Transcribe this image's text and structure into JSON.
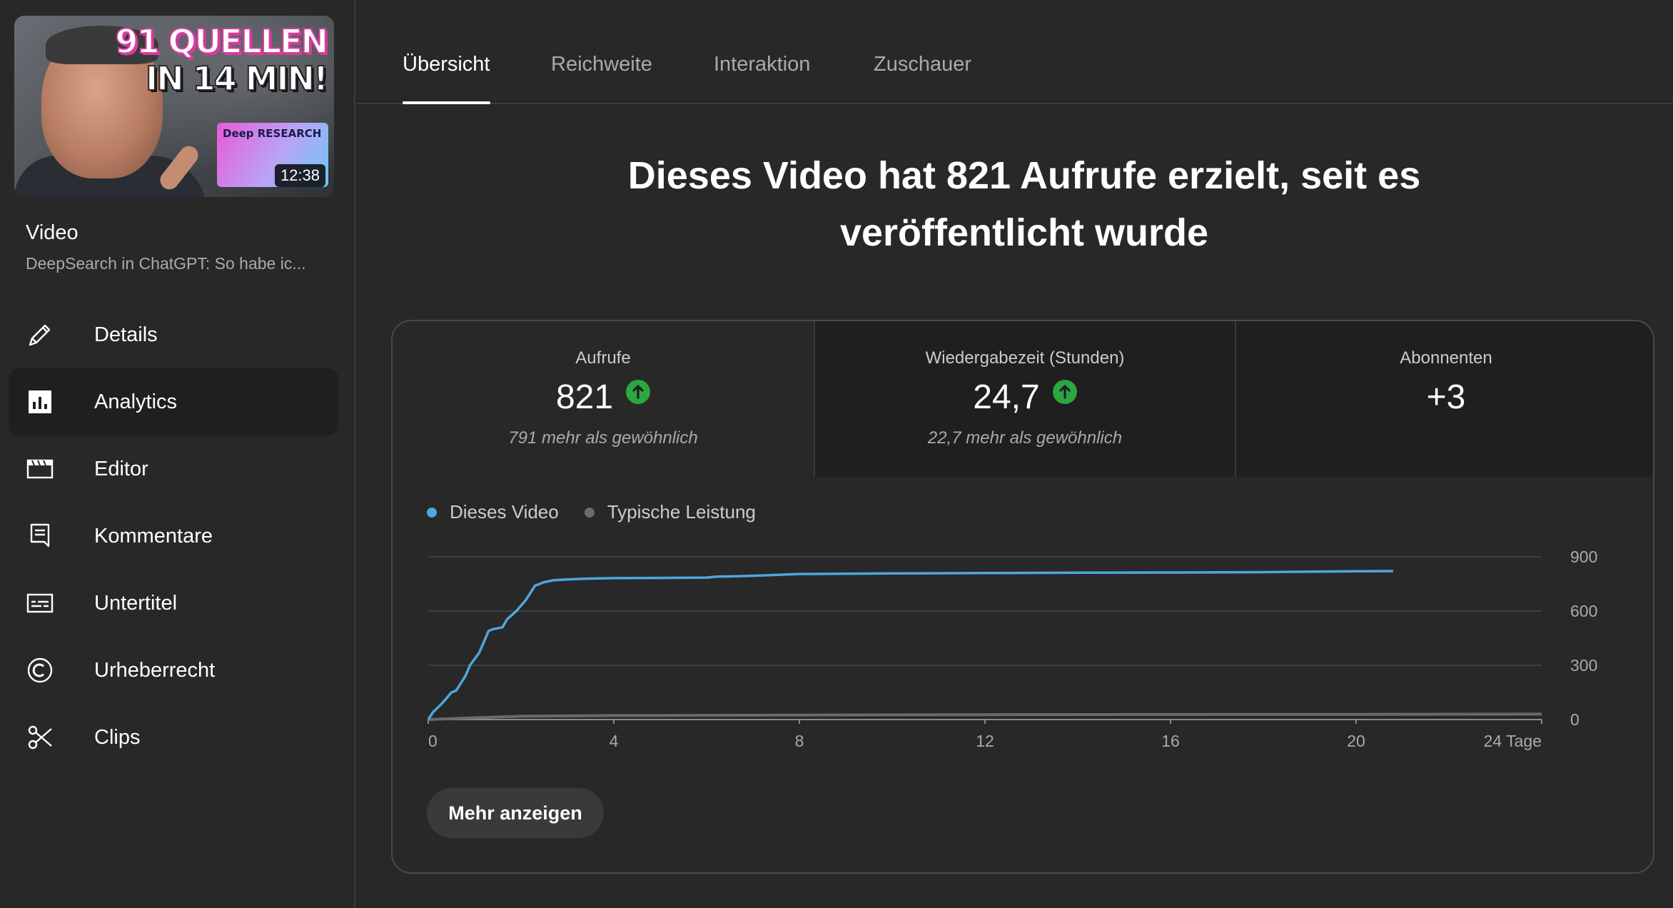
{
  "video": {
    "thumbnail_headline_1": "91 QUELLEN",
    "thumbnail_headline_2": "IN 14 MIN!",
    "thumbnail_badge": "Deep RESEARCH",
    "duration": "12:38",
    "label": "Video",
    "title": "DeepSearch in ChatGPT: So habe ic..."
  },
  "sidebar": {
    "items": [
      {
        "label": "Details",
        "icon": "pencil-icon",
        "active": false
      },
      {
        "label": "Analytics",
        "icon": "analytics-icon",
        "active": true
      },
      {
        "label": "Editor",
        "icon": "clapperboard-icon",
        "active": false
      },
      {
        "label": "Kommentare",
        "icon": "comment-icon",
        "active": false
      },
      {
        "label": "Untertitel",
        "icon": "subtitles-icon",
        "active": false
      },
      {
        "label": "Urheberrecht",
        "icon": "copyright-icon",
        "active": false
      },
      {
        "label": "Clips",
        "icon": "scissors-icon",
        "active": false
      }
    ]
  },
  "tabs": [
    {
      "label": "Übersicht",
      "active": true
    },
    {
      "label": "Reichweite",
      "active": false
    },
    {
      "label": "Interaktion",
      "active": false
    },
    {
      "label": "Zuschauer",
      "active": false
    }
  ],
  "headline": "Dieses Video hat 821 Aufrufe erzielt, seit es veröffentlicht wurde",
  "metrics": [
    {
      "label": "Aufrufe",
      "value": "821",
      "trend": "up",
      "note": "791 mehr als gewöhnlich"
    },
    {
      "label": "Wiedergabezeit (Stunden)",
      "value": "24,7",
      "trend": "up",
      "note": "22,7 mehr als gewöhnlich"
    },
    {
      "label": "Abonnenten",
      "value": "+3",
      "trend": "none",
      "note": ""
    }
  ],
  "colors": {
    "background": "#282828",
    "this_video": "#4fa6db",
    "typical": "#6b6b6b",
    "trend_up": "#2ba640"
  },
  "more_button": "Mehr anzeigen",
  "chart_data": {
    "type": "line",
    "x_unit_label": "24 Tage",
    "x_ticks": [
      "0",
      "4",
      "8",
      "12",
      "16",
      "20",
      "24 Tage"
    ],
    "y_ticks": [
      "900",
      "600",
      "300",
      "0"
    ],
    "xlim": [
      0,
      24
    ],
    "ylim": [
      0,
      900
    ],
    "grid": true,
    "legend_position": "top-left",
    "series": [
      {
        "name": "Dieses Video",
        "color": "#4fa6db",
        "x": [
          0,
          0.1,
          0.3,
          0.5,
          0.6,
          0.8,
          0.9,
          1.1,
          1.2,
          1.3,
          1.4,
          1.6,
          1.7,
          1.9,
          2.0,
          2.1,
          2.2,
          2.3,
          2.5,
          2.7,
          3.0,
          3.3,
          3.6,
          4.0,
          5.0,
          6.0,
          6.2,
          7.0,
          8.0,
          10.0,
          12.0,
          14.0,
          16.0,
          18.0,
          20.0,
          20.8
        ],
        "y": [
          0,
          40,
          90,
          150,
          160,
          240,
          300,
          370,
          430,
          490,
          500,
          510,
          555,
          600,
          630,
          660,
          700,
          740,
          760,
          770,
          775,
          778,
          780,
          782,
          783,
          785,
          790,
          795,
          805,
          808,
          810,
          812,
          813,
          815,
          820,
          821
        ]
      },
      {
        "name": "Typische Leistung",
        "color": "#6b6b6b",
        "x": [
          0,
          1,
          2,
          4,
          8,
          12,
          16,
          20,
          24
        ],
        "y": [
          0,
          10,
          18,
          22,
          25,
          27,
          28,
          29,
          30
        ]
      }
    ]
  }
}
